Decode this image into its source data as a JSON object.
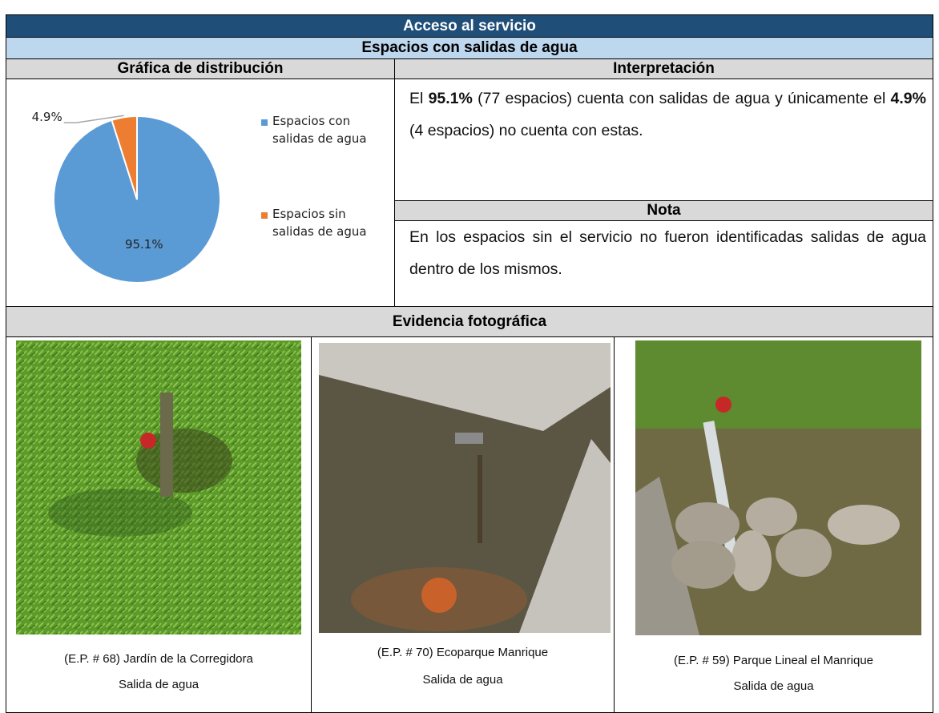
{
  "header": {
    "title": "Acceso al servicio",
    "subtitle": "Espacios con salidas de agua"
  },
  "columns": {
    "left": "Gráfica de distribución",
    "right": "Interpretación"
  },
  "chart_data": {
    "type": "pie",
    "categories": [
      "Espacios con salidas de agua",
      "Espacios sin salidas de agua"
    ],
    "values": [
      95.1,
      4.9
    ],
    "value_labels": [
      "95.1%",
      "4.9%"
    ],
    "colors": [
      "#5b9bd5",
      "#ed7d31"
    ],
    "legend": "right"
  },
  "interpretation": {
    "parts": [
      "El ",
      "95.1%",
      " (77 espacios) cuenta con salidas de agua y únicamente el ",
      "4.9%",
      " (4 espacios) no cuenta con estas."
    ]
  },
  "note": {
    "title": "Nota",
    "text": "En los espacios sin el servicio no fueron identificadas salidas de agua dentro de los mismos."
  },
  "evidence": {
    "title": "Evidencia fotográfica",
    "photos": [
      {
        "caption": "(E.P. # 68) Jardín de la Corregidora",
        "label": "Salida de agua"
      },
      {
        "caption": "(E.P. # 70) Ecoparque Manrique",
        "label": "Salida de agua"
      },
      {
        "caption": "(E.P. # 59) Parque Lineal el Manrique",
        "label": "Salida de agua"
      }
    ]
  }
}
